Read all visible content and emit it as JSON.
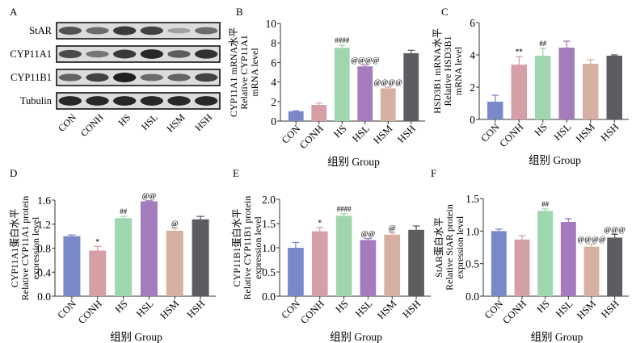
{
  "figure": {
    "groups": [
      "CON",
      "CONH",
      "HS",
      "HSL",
      "HSM",
      "HSH"
    ],
    "group_colors": [
      "#7b88c8",
      "#d4a0a6",
      "#9ed6ad",
      "#a47bbd",
      "#d6b0a2",
      "#5c5d60"
    ],
    "xlabel": "组别  Group"
  },
  "blot": {
    "panel_label": "A",
    "rows": [
      {
        "label": "StAR",
        "intensity": [
          0.7,
          0.55,
          0.85,
          0.8,
          0.25,
          0.55
        ]
      },
      {
        "label": "CYP11A1",
        "intensity": [
          0.75,
          0.5,
          0.85,
          0.95,
          0.65,
          0.9
        ]
      },
      {
        "label": "CYP11B1",
        "intensity": [
          0.6,
          0.8,
          1.0,
          0.55,
          0.6,
          0.8
        ]
      },
      {
        "label": "Tubulin",
        "intensity": [
          0.95,
          0.95,
          0.95,
          0.95,
          0.95,
          0.95
        ]
      }
    ],
    "lane_labels": [
      "CON",
      "CONH",
      "HS",
      "HSL",
      "HSM",
      "HSH"
    ]
  },
  "chart_data": [
    {
      "id": "B",
      "type": "bar",
      "panel_label": "B",
      "ylabel_lines": [
        "CYP11A1 mRNA水平",
        "Relative CYP11A1",
        "mRNA level"
      ],
      "xlabel": "组别  Group",
      "categories": [
        "CON",
        "CONH",
        "HS",
        "HSL",
        "HSM",
        "HSH"
      ],
      "values": [
        1.0,
        1.65,
        7.5,
        5.6,
        3.35,
        6.95
      ],
      "errors": [
        0.05,
        0.2,
        0.25,
        0.15,
        0.12,
        0.3
      ],
      "annotations": [
        "",
        "",
        "####",
        "@@@@",
        "@@@@",
        ""
      ],
      "ylim": [
        0,
        10
      ],
      "yticks": [
        0,
        2,
        4,
        6,
        8,
        10
      ],
      "ytick_labels": [
        "0",
        "2",
        "4",
        "6",
        "8",
        "10"
      ]
    },
    {
      "id": "C",
      "type": "bar",
      "panel_label": "C",
      "ylabel_lines": [
        "HSD3B1 mRNA水平",
        "Relative HSD3B1",
        "mRNA level"
      ],
      "xlabel": "组别  Group",
      "categories": [
        "CON",
        "CONH",
        "HS",
        "HSL",
        "HSM",
        "HSH"
      ],
      "values": [
        1.1,
        3.4,
        3.95,
        4.45,
        3.45,
        3.95
      ],
      "errors": [
        0.4,
        0.5,
        0.45,
        0.4,
        0.25,
        0.05
      ],
      "annotations": [
        "",
        "**",
        "##",
        "",
        "",
        ""
      ],
      "ylim": [
        0,
        6
      ],
      "yticks": [
        0,
        2,
        4,
        6
      ],
      "ytick_labels": [
        "0",
        "2",
        "4",
        "6"
      ]
    },
    {
      "id": "D",
      "type": "bar",
      "panel_label": "D",
      "ylabel_lines": [
        "CYP11A1蛋白水平",
        "Relative CYP11A1 protein",
        "expression level"
      ],
      "xlabel": "组别  Group",
      "categories": [
        "CON",
        "CONH",
        "HS",
        "HSL",
        "HSM",
        "HSH"
      ],
      "values": [
        1.0,
        0.76,
        1.3,
        1.58,
        1.09,
        1.28
      ],
      "errors": [
        0.02,
        0.07,
        0.03,
        0.01,
        0.04,
        0.05
      ],
      "annotations": [
        "",
        "*",
        "##",
        "@@",
        "@",
        ""
      ],
      "ylim": [
        0,
        1.6
      ],
      "yticks": [
        0,
        0.4,
        0.8,
        1.2,
        1.6
      ],
      "ytick_labels": [
        "0.0",
        "0.4",
        "0.8",
        "1.2",
        "1.6"
      ]
    },
    {
      "id": "E",
      "type": "bar",
      "panel_label": "E",
      "ylabel_lines": [
        "CYP11B1蛋白水平",
        "Relative CYP11B1 protein",
        "expression level"
      ],
      "xlabel": "组别  Group",
      "categories": [
        "CON",
        "CONH",
        "HS",
        "HSL",
        "HSM",
        "HSH"
      ],
      "values": [
        1.0,
        1.34,
        1.66,
        1.16,
        1.27,
        1.37
      ],
      "errors": [
        0.11,
        0.08,
        0.04,
        0.03,
        0.04,
        0.08
      ],
      "annotations": [
        "",
        "*",
        "####",
        "@@",
        "@",
        ""
      ],
      "ylim": [
        0,
        2.0
      ],
      "yticks": [
        0,
        0.5,
        1.0,
        1.5,
        2.0
      ],
      "ytick_labels": [
        "0.0",
        "0.5",
        "1.0",
        "1.5",
        "2.0"
      ]
    },
    {
      "id": "F",
      "type": "bar",
      "panel_label": "F",
      "ylabel_lines": [
        "StAR蛋白水平",
        "Relative StAR protein",
        "expression level"
      ],
      "xlabel": "组别  Group",
      "categories": [
        "CON",
        "CONH",
        "HS",
        "HSL",
        "HSM",
        "HSH"
      ],
      "values": [
        1.0,
        0.87,
        1.31,
        1.14,
        0.76,
        0.9
      ],
      "errors": [
        0.03,
        0.06,
        0.03,
        0.05,
        0.04,
        0.05
      ],
      "annotations": [
        "",
        "",
        "##",
        "",
        "@@@@",
        "@@@"
      ],
      "ylim": [
        0,
        1.5
      ],
      "yticks": [
        0,
        0.5,
        1.0,
        1.5
      ],
      "ytick_labels": [
        "0.0",
        "0.5",
        "1.0",
        "1.5"
      ]
    }
  ]
}
